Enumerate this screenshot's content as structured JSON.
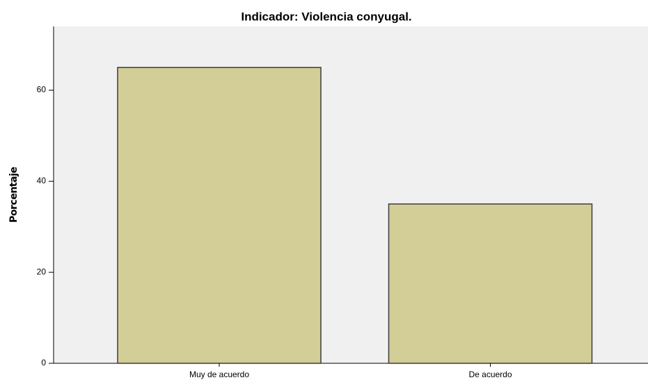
{
  "chart_data": {
    "type": "bar",
    "title": "Indicador: Violencia conyugal.",
    "y_label": "Porcentaje",
    "categories": [
      "Muy de acuerdo",
      "De acuerdo"
    ],
    "values": [
      65,
      35
    ],
    "color": "#d3cd97",
    "ylim": [
      0,
      74
    ],
    "yticks": [
      0,
      20,
      40,
      60
    ],
    "grid": false
  }
}
